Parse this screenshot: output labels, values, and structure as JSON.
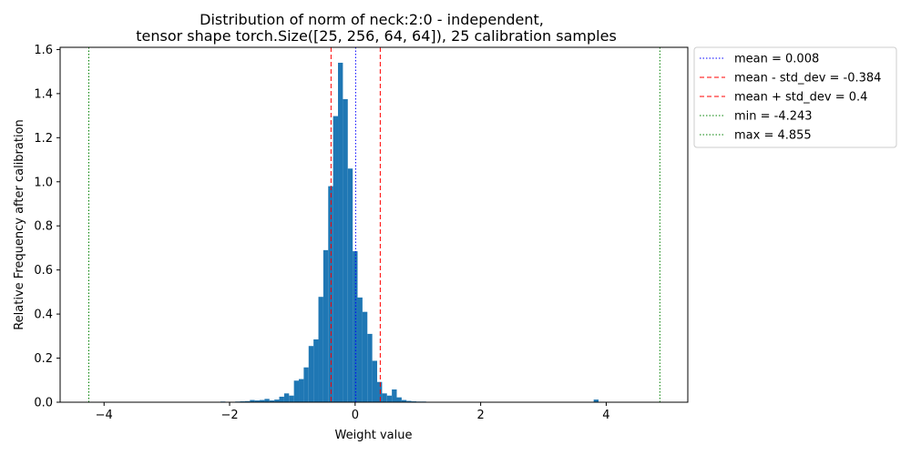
{
  "chart_data": {
    "type": "bar",
    "title": "Distribution of norm of neck:2:0 - independent,",
    "subtitle": "tensor shape torch.Size([25, 256, 64, 64]), 25 calibration samples",
    "xlabel": "Weight value",
    "ylabel": "Relative Frequency after calibration",
    "xlim": [
      -4.7,
      5.3
    ],
    "ylim": [
      0,
      1.61
    ],
    "xticks": [
      -4,
      -2,
      0,
      2,
      4
    ],
    "yticks": [
      0.0,
      0.2,
      0.4,
      0.6,
      0.8,
      1.0,
      1.2,
      1.4,
      1.6
    ],
    "ytick_labels": [
      "0.0",
      "0.2",
      "0.4",
      "0.6",
      "0.8",
      "1.0",
      "1.2",
      "1.4",
      "1.6"
    ],
    "grid": false,
    "legend_position": "outside-top-right",
    "bar_color": "#1f77b4",
    "bin_width": 0.078,
    "bins": [
      {
        "x": -2.145,
        "y": 0.003
      },
      {
        "x": -1.989,
        "y": 0.002
      },
      {
        "x": -1.911,
        "y": 0.003
      },
      {
        "x": -1.833,
        "y": 0.004
      },
      {
        "x": -1.755,
        "y": 0.005
      },
      {
        "x": -1.677,
        "y": 0.01
      },
      {
        "x": -1.599,
        "y": 0.008
      },
      {
        "x": -1.521,
        "y": 0.01
      },
      {
        "x": -1.443,
        "y": 0.015
      },
      {
        "x": -1.365,
        "y": 0.008
      },
      {
        "x": -1.287,
        "y": 0.012
      },
      {
        "x": -1.209,
        "y": 0.025
      },
      {
        "x": -1.131,
        "y": 0.04
      },
      {
        "x": -1.053,
        "y": 0.03
      },
      {
        "x": -0.975,
        "y": 0.098
      },
      {
        "x": -0.897,
        "y": 0.105
      },
      {
        "x": -0.819,
        "y": 0.158
      },
      {
        "x": -0.741,
        "y": 0.255
      },
      {
        "x": -0.663,
        "y": 0.285
      },
      {
        "x": -0.585,
        "y": 0.478
      },
      {
        "x": -0.507,
        "y": 0.69
      },
      {
        "x": -0.429,
        "y": 0.98
      },
      {
        "x": -0.351,
        "y": 1.298
      },
      {
        "x": -0.273,
        "y": 1.54
      },
      {
        "x": -0.195,
        "y": 1.375
      },
      {
        "x": -0.117,
        "y": 1.06
      },
      {
        "x": -0.039,
        "y": 0.685
      },
      {
        "x": 0.039,
        "y": 0.475
      },
      {
        "x": 0.117,
        "y": 0.41
      },
      {
        "x": 0.195,
        "y": 0.31
      },
      {
        "x": 0.273,
        "y": 0.188
      },
      {
        "x": 0.351,
        "y": 0.092
      },
      {
        "x": 0.429,
        "y": 0.04
      },
      {
        "x": 0.507,
        "y": 0.03
      },
      {
        "x": 0.585,
        "y": 0.058
      },
      {
        "x": 0.663,
        "y": 0.022
      },
      {
        "x": 0.741,
        "y": 0.01
      },
      {
        "x": 0.819,
        "y": 0.006
      },
      {
        "x": 0.897,
        "y": 0.004
      },
      {
        "x": 0.975,
        "y": 0.003
      },
      {
        "x": 1.053,
        "y": 0.003
      },
      {
        "x": 1.131,
        "y": 0.002
      },
      {
        "x": 1.209,
        "y": 0.002
      },
      {
        "x": 1.287,
        "y": 0.002
      },
      {
        "x": 1.365,
        "y": 0.002
      },
      {
        "x": 3.8,
        "y": 0.012
      }
    ],
    "vlines": [
      {
        "x": 0.008,
        "label": "mean = 0.008",
        "color": "#0000ff",
        "style": "dotted"
      },
      {
        "x": -0.384,
        "label": "mean - std_dev = -0.384",
        "color": "#ff0000",
        "style": "dashed"
      },
      {
        "x": 0.4,
        "label": "mean + std_dev = 0.4",
        "color": "#ff0000",
        "style": "dashed"
      },
      {
        "x": -4.243,
        "label": "min = -4.243",
        "color": "#008000",
        "style": "dotted"
      },
      {
        "x": 4.855,
        "label": "max = 4.855",
        "color": "#008000",
        "style": "dotted"
      }
    ]
  }
}
